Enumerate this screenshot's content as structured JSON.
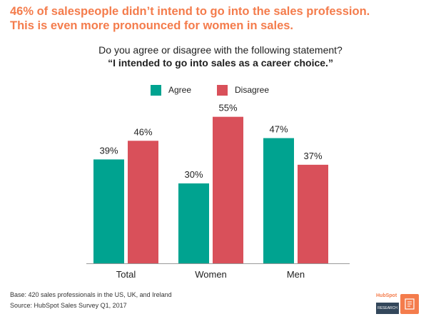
{
  "headline": {
    "line1": "46% of salespeople didn’t intend to go into the sales profession.",
    "line2": "This is even more pronounced for women in sales."
  },
  "question": "Do you agree or disagree with the following statement?",
  "statement": "“I intended to go into sales as a career choice.”",
  "colors": {
    "agree": "#00a390",
    "disagree": "#d9505a",
    "headline": "#f47c4c"
  },
  "chart_data": {
    "type": "bar",
    "categories": [
      "Total",
      "Women",
      "Men"
    ],
    "series": [
      {
        "name": "Agree",
        "values": [
          39,
          30,
          47
        ],
        "labels": [
          "39%",
          "30%",
          "47%"
        ]
      },
      {
        "name": "Disagree",
        "values": [
          46,
          55,
          37
        ],
        "labels": [
          "46%",
          "55%",
          "37%"
        ]
      }
    ],
    "ylim": [
      0,
      60
    ],
    "legend_position": "top-center",
    "grid": false
  },
  "footnote": {
    "base": "Base: 420 sales professionals in the US, UK, and Ireland",
    "source": "Source: HubSpot Sales Survey Q1, 2017"
  },
  "logo": {
    "brand": "HubSpot",
    "tag": "RESEARCH",
    "icon": "document-icon"
  }
}
